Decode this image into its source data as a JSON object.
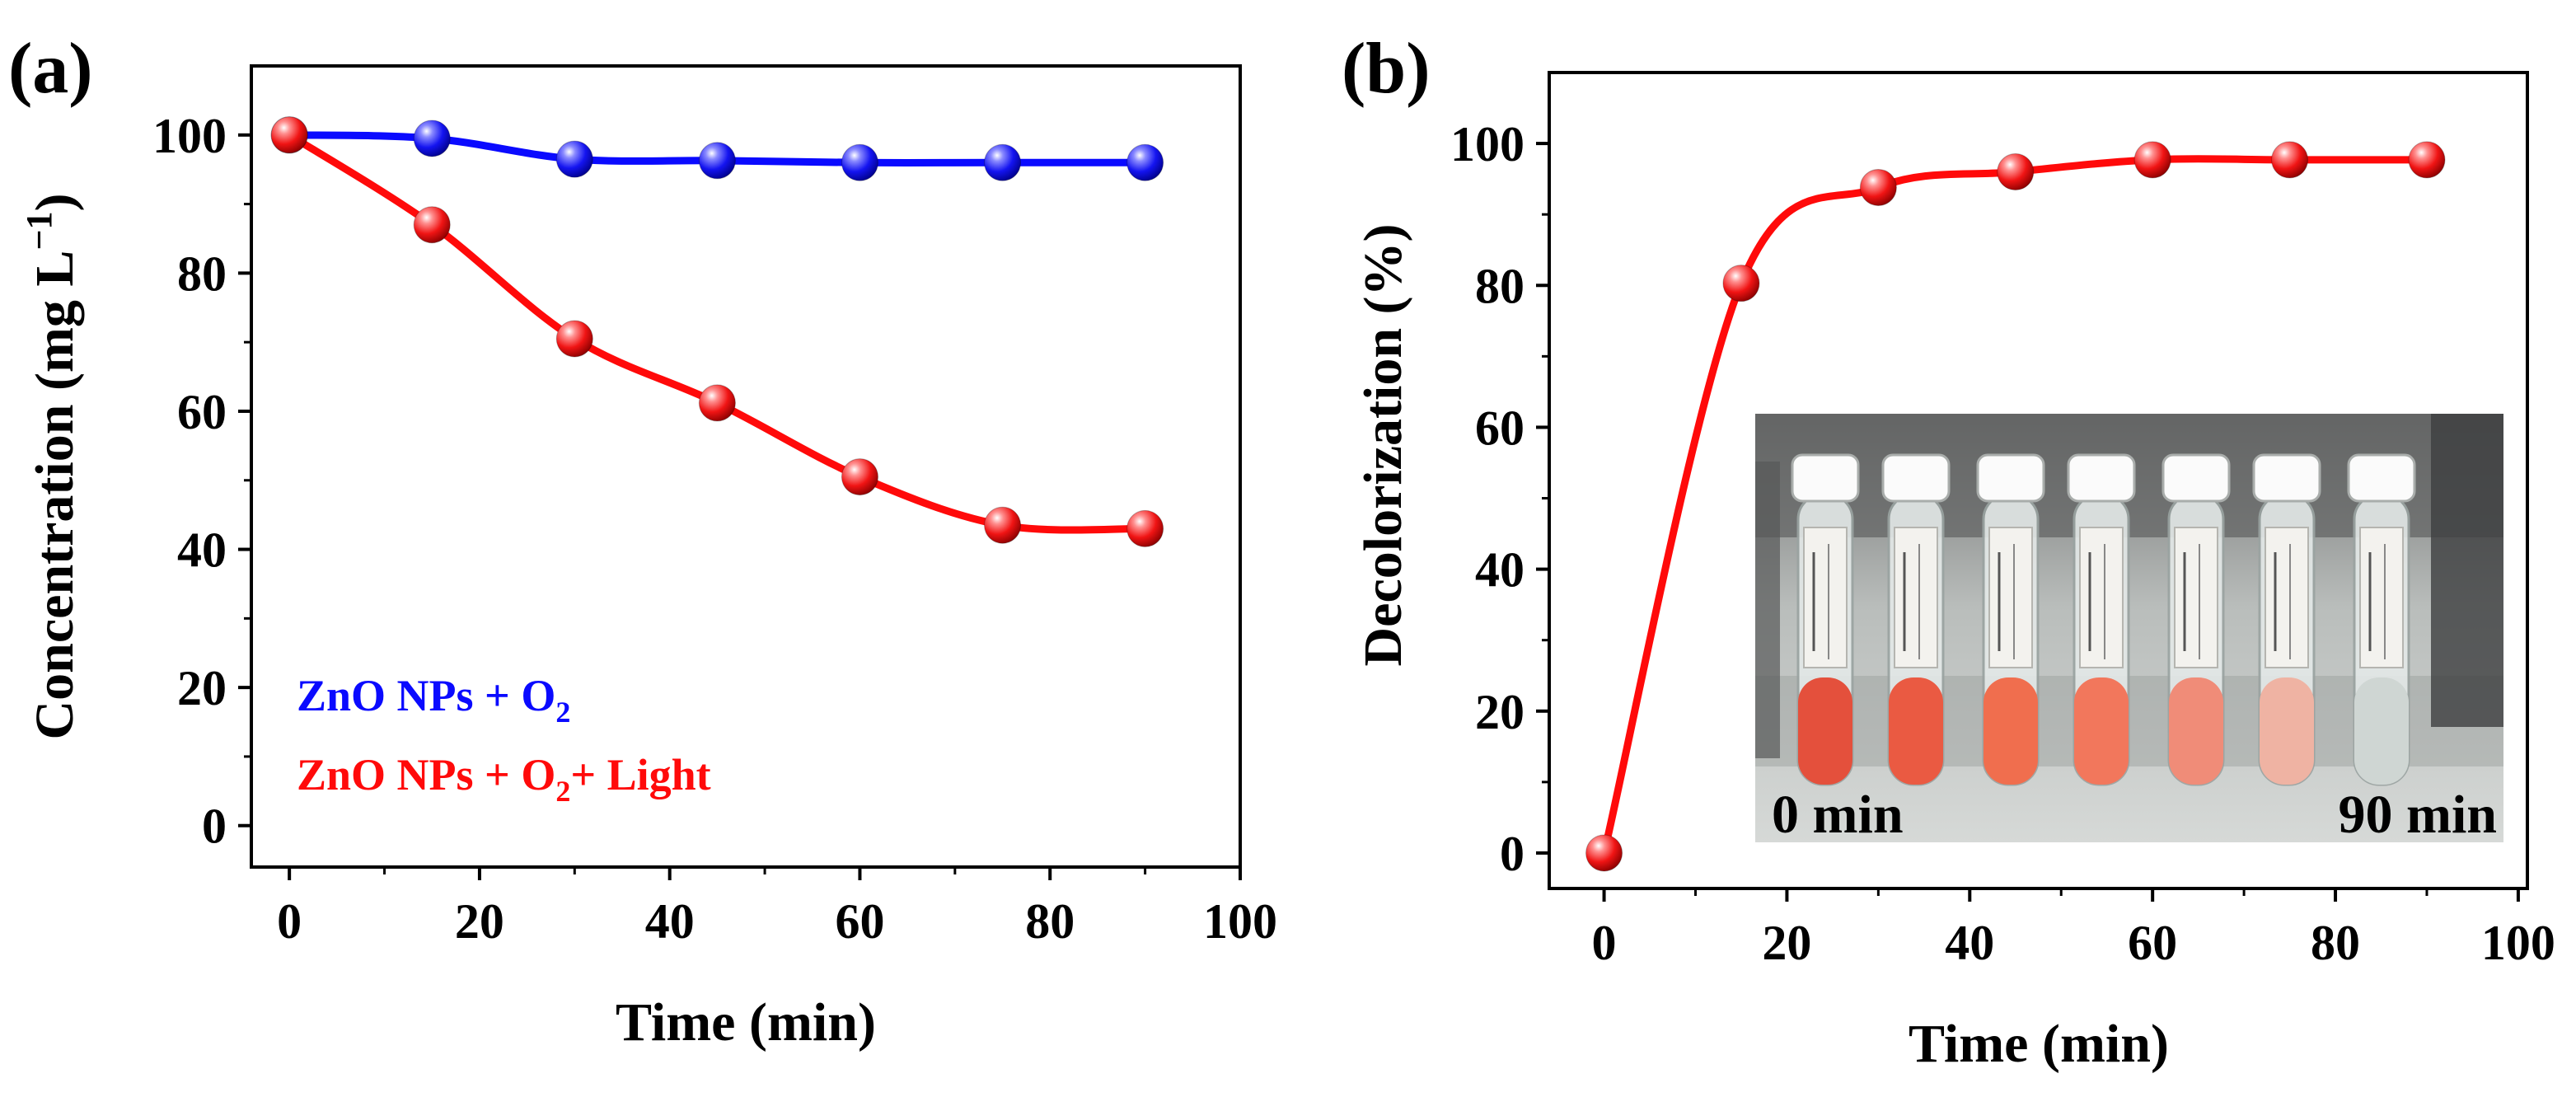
{
  "chart_data": [
    {
      "type": "line",
      "panel_label": "(a)",
      "title": "",
      "xlabel": "Time (min)",
      "ylabel_main": "Concentration (mg L",
      "ylabel_sup": "−1",
      "ylabel_close": ")",
      "xlim": [
        -4,
        100
      ],
      "ylim": [
        -6,
        110
      ],
      "xticks": [
        0,
        20,
        40,
        60,
        80,
        100
      ],
      "yticks": [
        0,
        20,
        40,
        60,
        80,
        100
      ],
      "grid": false,
      "legend_position": "bottom-left",
      "series": [
        {
          "name": "ZnO NPs + O2",
          "legend_main": "ZnO NPs + O",
          "legend_sub": "2",
          "legend_suffix": "",
          "color": "#0a0aff",
          "x": [
            0,
            15,
            30,
            45,
            60,
            75,
            90
          ],
          "y": [
            100,
            99.5,
            96.5,
            96.3,
            96,
            96,
            96
          ]
        },
        {
          "name": "ZnO NPs + O2+ Light",
          "legend_main": "ZnO NPs + O",
          "legend_sub": "2",
          "legend_suffix": "+ Light",
          "color": "#ff0a0a",
          "x": [
            0,
            15,
            30,
            45,
            60,
            75,
            90
          ],
          "y": [
            100,
            87,
            70.5,
            61.2,
            50.5,
            43.5,
            43
          ]
        }
      ]
    },
    {
      "type": "line",
      "panel_label": "(b)",
      "title": "",
      "xlabel": "Time (min)",
      "ylabel": "Decolorization (%)",
      "xlim": [
        -6,
        101
      ],
      "ylim": [
        -5,
        110
      ],
      "xticks": [
        0,
        20,
        40,
        60,
        80,
        100
      ],
      "yticks": [
        0,
        20,
        40,
        60,
        80,
        100
      ],
      "grid": false,
      "series": [
        {
          "name": "Decolorization",
          "color": "#ff0a0a",
          "x": [
            0,
            15,
            30,
            45,
            60,
            75,
            90
          ],
          "y": [
            0,
            80.3,
            93.8,
            96,
            97.7,
            97.7,
            97.7
          ]
        }
      ],
      "inset": {
        "description_labels": [
          "0 min",
          "90 min"
        ],
        "tube_colors": [
          "#e4503c",
          "#ea5a42",
          "#f06e4e",
          "#f2775c",
          "#f08c78",
          "#efb3a3",
          "#cfd6d3"
        ]
      }
    }
  ]
}
